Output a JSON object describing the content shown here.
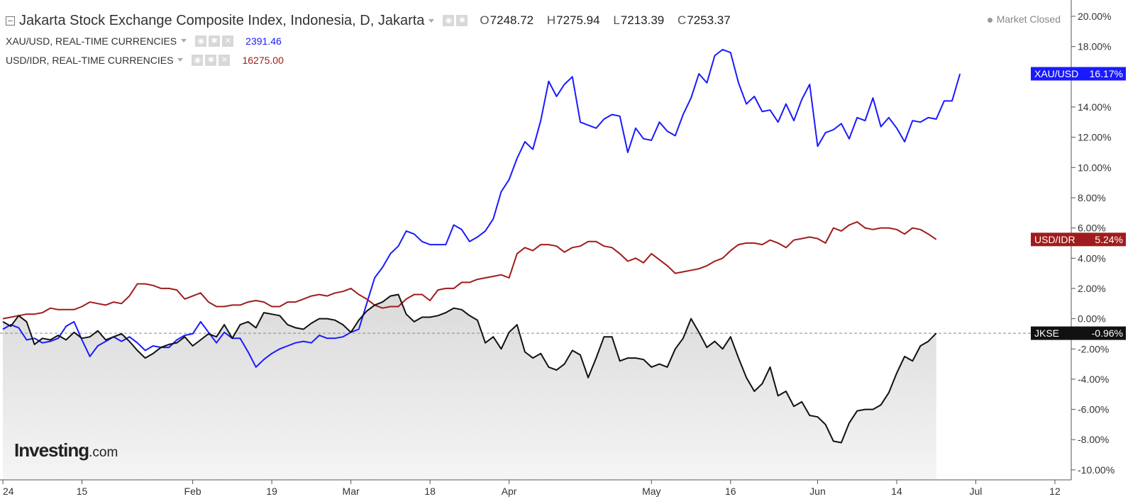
{
  "legend": {
    "main_title": "Jakarta Stock Exchange Composite Index, Indonesia, D, Jakarta",
    "ohlc": [
      {
        "key": "O",
        "value": "7248.72"
      },
      {
        "key": "H",
        "value": "7275.94"
      },
      {
        "key": "L",
        "value": "7213.39"
      },
      {
        "key": "C",
        "value": "7253.37"
      }
    ],
    "xau_label": "XAU/USD, REAL-TIME CURRENCIES",
    "xau_value": "2391.46",
    "idr_label": "USD/IDR, REAL-TIME CURRENCIES",
    "idr_value": "16275.00"
  },
  "status": "Market Closed",
  "logo": {
    "bold": "Investing",
    "suffix": ".com"
  },
  "colors": {
    "xau": "#1a1aff",
    "idr": "#a01c1c",
    "jkse": "#111111",
    "jkse_area": "#d9d9d9",
    "axis": "#555555"
  },
  "chart_data": {
    "type": "line",
    "title": "Jakarta Stock Exchange Composite Index, Indonesia, D, Jakarta",
    "ylim": [
      -10,
      20
    ],
    "y_ticks": [
      "20.00%",
      "18.00%",
      "16.00%",
      "14.00%",
      "12.00%",
      "10.00%",
      "8.00%",
      "6.00%",
      "4.00%",
      "2.00%",
      "0.00%",
      "-2.00%",
      "-4.00%",
      "-6.00%",
      "-8.00%",
      "-10.00%"
    ],
    "y_tick_values": [
      20,
      18,
      16,
      14,
      12,
      10,
      8,
      6,
      4,
      2,
      0,
      -2,
      -4,
      -6,
      -8,
      -10
    ],
    "x_range": [
      0,
      140
    ],
    "x_tick_labels": [
      "24",
      "15",
      "Feb",
      "19",
      "Mar",
      "18",
      "Apr",
      "May",
      "16",
      "Jun",
      "14",
      "Jul",
      "12"
    ],
    "x_tick_positions": [
      0,
      10,
      24,
      34,
      44,
      54,
      64,
      82,
      92,
      103,
      113,
      123,
      133
    ],
    "grid": false,
    "series": [
      {
        "name": "XAU/USD",
        "label": "16.17%",
        "key": "xau",
        "values": [
          -0.7,
          -0.4,
          -0.6,
          -1.4,
          -1.3,
          -1.6,
          -1.5,
          -1.3,
          -0.5,
          -0.2,
          -1.4,
          -2.5,
          -1.8,
          -1.5,
          -1.2,
          -1.5,
          -1.2,
          -1.6,
          -2.1,
          -1.8,
          -1.9,
          -1.9,
          -1.4,
          -1.1,
          -1.0,
          -0.2,
          -0.9,
          -1.6,
          -0.9,
          -1.3,
          -1.3,
          -2.2,
          -3.2,
          -2.7,
          -2.3,
          -2.0,
          -1.8,
          -1.6,
          -1.5,
          -1.6,
          -1.1,
          -1.3,
          -1.3,
          -1.2,
          -0.9,
          -0.7,
          1.0,
          2.7,
          3.4,
          4.3,
          4.8,
          5.8,
          5.6,
          5.1,
          4.9,
          4.9,
          4.9,
          6.2,
          5.9,
          5.1,
          5.4,
          5.8,
          6.6,
          8.4,
          9.2,
          10.6,
          11.7,
          11.2,
          13.1,
          15.7,
          14.7,
          15.5,
          16.0,
          13.0,
          12.8,
          12.6,
          13.2,
          13.5,
          13.4,
          11.0,
          12.6,
          11.9,
          11.8,
          13.0,
          12.4,
          12.1,
          13.5,
          14.6,
          16.2,
          15.6,
          17.4,
          17.8,
          17.6,
          15.6,
          14.2,
          14.7,
          13.7,
          13.8,
          13.0,
          14.2,
          13.1,
          14.5,
          15.5,
          11.4,
          12.3,
          12.5,
          12.9,
          11.9,
          13.3,
          13.1,
          14.6,
          12.7,
          13.3,
          12.6,
          11.7,
          13.1,
          13.0,
          13.3,
          13.2,
          14.4,
          14.4,
          16.2
        ]
      },
      {
        "name": "USD/IDR",
        "label": "5.24%",
        "key": "idr",
        "values": [
          0.0,
          0.1,
          0.2,
          0.3,
          0.3,
          0.4,
          0.7,
          0.6,
          0.6,
          0.6,
          0.8,
          1.1,
          1.0,
          0.9,
          1.1,
          1.0,
          1.5,
          2.3,
          2.3,
          2.2,
          2.0,
          2.0,
          1.9,
          1.3,
          1.5,
          1.7,
          1.1,
          0.8,
          0.8,
          0.9,
          0.9,
          1.1,
          1.2,
          1.1,
          0.8,
          0.8,
          1.1,
          1.1,
          1.3,
          1.5,
          1.6,
          1.5,
          1.7,
          1.8,
          2.0,
          1.6,
          1.3,
          0.9,
          0.7,
          0.8,
          0.8,
          1.3,
          1.6,
          1.6,
          1.2,
          1.9,
          2.0,
          2.0,
          2.4,
          2.4,
          2.6,
          2.7,
          2.8,
          2.9,
          2.7,
          4.3,
          4.7,
          4.5,
          4.9,
          4.9,
          4.8,
          4.4,
          4.7,
          4.8,
          5.1,
          5.1,
          4.8,
          4.7,
          4.3,
          3.8,
          4.0,
          3.7,
          4.3,
          3.9,
          3.5,
          3.0,
          3.1,
          3.2,
          3.3,
          3.5,
          3.8,
          4.0,
          4.5,
          4.9,
          5.0,
          5.0,
          4.9,
          5.2,
          5.0,
          4.7,
          5.2,
          5.3,
          5.4,
          5.3,
          5.0,
          6.0,
          5.8,
          6.2,
          6.4,
          6.0,
          5.9,
          6.0,
          6.0,
          5.9,
          5.6,
          6.0,
          5.9,
          5.6,
          5.24
        ]
      },
      {
        "name": "JKSE",
        "label": "-0.96%",
        "key": "jkse",
        "values": [
          -0.2,
          -0.5,
          0.2,
          -0.2,
          -1.7,
          -1.3,
          -1.4,
          -1.1,
          -1.4,
          -0.9,
          -1.3,
          -1.2,
          -0.8,
          -1.4,
          -1.2,
          -1.0,
          -1.5,
          -2.1,
          -2.6,
          -2.3,
          -1.9,
          -1.7,
          -1.6,
          -1.2,
          -1.8,
          -1.4,
          -1.0,
          -1.2,
          -0.4,
          -1.3,
          -0.4,
          -0.2,
          -0.6,
          0.4,
          0.3,
          0.2,
          -0.4,
          -0.6,
          -0.7,
          -0.3,
          0.0,
          0.0,
          -0.1,
          -0.4,
          -0.9,
          -0.1,
          0.5,
          0.9,
          1.1,
          1.5,
          1.6,
          0.3,
          -0.2,
          0.1,
          0.1,
          0.2,
          0.4,
          0.7,
          0.6,
          0.2,
          -0.1,
          -1.6,
          -1.2,
          -2.0,
          -0.9,
          -0.4,
          -2.2,
          -2.6,
          -2.3,
          -3.2,
          -3.4,
          -3.0,
          -2.1,
          -2.4,
          -3.9,
          -2.6,
          -1.2,
          -1.2,
          -2.8,
          -2.6,
          -2.6,
          -2.7,
          -3.2,
          -3.0,
          -3.2,
          -2.0,
          -1.3,
          0.0,
          -0.9,
          -1.9,
          -1.5,
          -2.0,
          -1.2,
          -2.6,
          -3.9,
          -4.8,
          -4.3,
          -3.2,
          -5.1,
          -4.8,
          -5.8,
          -5.5,
          -6.4,
          -6.5,
          -7.0,
          -8.1,
          -8.2,
          -6.9,
          -6.1,
          -6.0,
          -6.0,
          -5.7,
          -4.9,
          -3.6,
          -2.5,
          -2.8,
          -1.8,
          -1.5,
          -0.96
        ]
      }
    ]
  }
}
